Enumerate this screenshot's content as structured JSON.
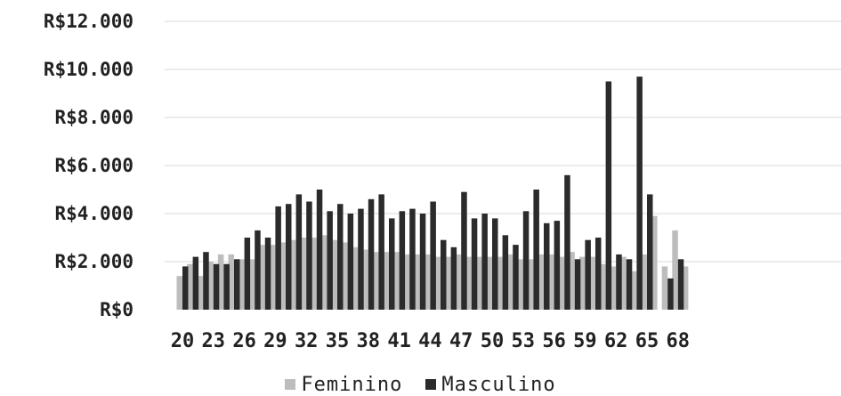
{
  "chart_data": {
    "type": "bar",
    "x": [
      20,
      21,
      22,
      23,
      24,
      25,
      26,
      27,
      28,
      29,
      30,
      31,
      32,
      33,
      34,
      35,
      36,
      37,
      38,
      39,
      40,
      41,
      42,
      43,
      44,
      45,
      46,
      47,
      48,
      49,
      50,
      51,
      52,
      53,
      54,
      55,
      56,
      57,
      58,
      59,
      60,
      61,
      62,
      63,
      64,
      65,
      66,
      67,
      68,
      69
    ],
    "xtick_labels": [
      "20",
      "23",
      "26",
      "29",
      "32",
      "35",
      "38",
      "41",
      "44",
      "47",
      "50",
      "53",
      "56",
      "59",
      "62",
      "65",
      "68"
    ],
    "series": [
      {
        "name": "Feminino",
        "color": "#bdbdbd",
        "values": [
          1400,
          1900,
          1400,
          2000,
          2300,
          2300,
          2100,
          2100,
          2700,
          2700,
          2800,
          2900,
          3000,
          3000,
          3100,
          2900,
          2800,
          2600,
          2500,
          2400,
          2400,
          2400,
          2300,
          2300,
          2300,
          2200,
          2200,
          2300,
          2200,
          2200,
          2200,
          2200,
          2300,
          2100,
          2100,
          2300,
          2300,
          2200,
          2400,
          2200,
          2200,
          1900,
          1800,
          2200,
          1600,
          2300,
          3900,
          1800,
          3300,
          1800
        ]
      },
      {
        "name": "Masculino",
        "color": "#2b2b2b",
        "values": [
          1800,
          2200,
          2400,
          1900,
          1900,
          2100,
          3000,
          3300,
          3000,
          4300,
          4400,
          4800,
          4500,
          5000,
          4100,
          4400,
          4000,
          4200,
          4600,
          4800,
          3800,
          4100,
          4200,
          4000,
          4500,
          2900,
          2600,
          4900,
          3800,
          4000,
          3800,
          3100,
          2700,
          4100,
          5000,
          3600,
          3700,
          5600,
          2100,
          2900,
          3000,
          9500,
          2300,
          2100,
          9700,
          4800,
          null,
          1300,
          2100,
          null
        ]
      }
    ],
    "y_ticks": [
      "R$0",
      "R$2.000",
      "R$4.000",
      "R$6.000",
      "R$8.000",
      "R$10.000",
      "R$12.000"
    ],
    "ylim": [
      0,
      12000
    ],
    "grid": true,
    "legend_position": "bottom"
  }
}
